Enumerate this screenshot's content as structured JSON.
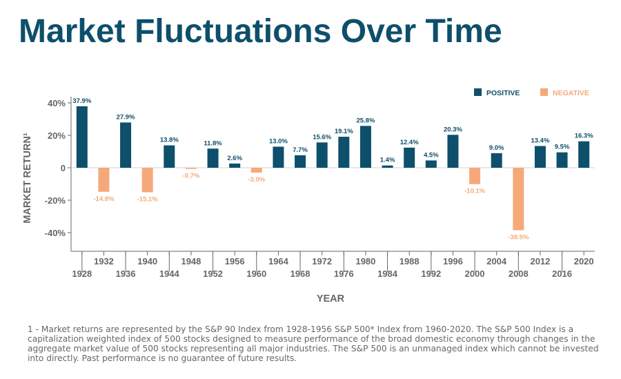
{
  "title": "Market Fluctuations Over Time",
  "footnote": "1 - Market returns are represented by the S&P 90 Index from 1928-1956 S&P 500* Index from 1960-2020. The S&P 500 Index is a capitalization weighted index of 500 stocks designed to measure performance of the broad domestic economy through changes in the aggregate market value of 500 stocks representing all major industries. The S&P 500 is an unmanaged index which cannot be invested into directly. Past performance is no guarantee of future results.",
  "colors": {
    "title": "#0e4f6b",
    "positive": "#0e4f6b",
    "negative": "#f5a97a",
    "axis": "#666666",
    "grid": "#d9d9d9"
  },
  "chart_data": {
    "type": "bar",
    "title": "",
    "xlabel": "YEAR",
    "ylabel": "MARKET RETURN¹",
    "ylim": [
      -50,
      45
    ],
    "yticks": [
      40,
      20,
      0,
      -20,
      -40
    ],
    "ytick_labels": [
      "40%",
      "20%",
      "0",
      "-20%",
      "-40%"
    ],
    "grid": "zero-line only",
    "legend_position": "top-right",
    "series": [
      {
        "name": "POSITIVE",
        "color": "#0e4f6b"
      },
      {
        "name": "NEGATIVE",
        "color": "#f5a97a"
      }
    ],
    "categories": [
      "1928",
      "1932",
      "1936",
      "1940",
      "1944",
      "1948",
      "1952",
      "1956",
      "1960",
      "1964",
      "1968",
      "1972",
      "1976",
      "1980",
      "1984",
      "1988",
      "1992",
      "1996",
      "2000",
      "2004",
      "2008",
      "2012",
      "2016",
      "2020"
    ],
    "values": [
      37.9,
      -14.8,
      27.9,
      -15.1,
      13.8,
      -0.7,
      11.8,
      2.6,
      -3.0,
      13.0,
      7.7,
      15.6,
      19.1,
      25.8,
      1.4,
      12.4,
      4.5,
      20.3,
      -10.1,
      9.0,
      -38.5,
      13.4,
      9.5,
      16.3
    ],
    "data_labels": [
      "37.9%",
      "-14.8%",
      "27.9%",
      "-15.1%",
      "13.8%",
      "-0.7%",
      "11.8%",
      "2.6%",
      "-3.0%",
      "13.0%",
      "7.7%",
      "15.6%",
      "19.1%",
      "25.8%",
      "1.4%",
      "12.4%",
      "4.5%",
      "20.3%",
      "-10.1%",
      "9.0%",
      "-38.5%",
      "13.4%",
      "9.5%",
      "16.3%"
    ]
  }
}
